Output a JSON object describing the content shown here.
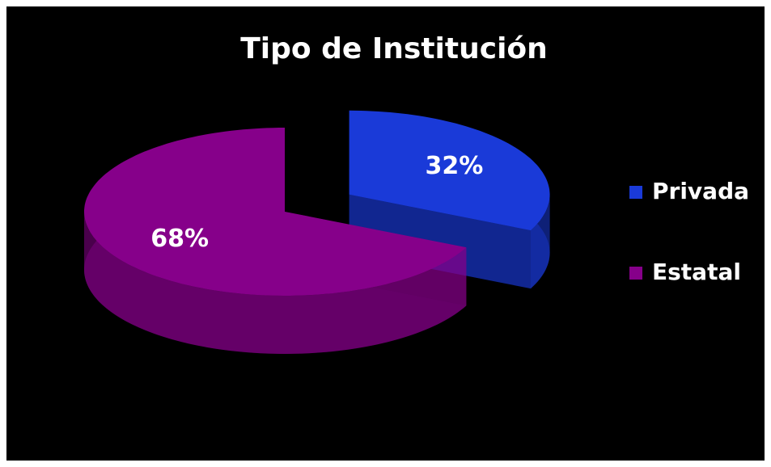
{
  "chart_data": {
    "type": "pie",
    "title": "Tipo de Institución",
    "categories": [
      "Privada",
      "Estatal"
    ],
    "values": [
      32,
      68
    ],
    "value_labels": [
      "32%",
      "68%"
    ],
    "colors": [
      "#1a3ad8",
      "#86008a"
    ],
    "legend": "right"
  }
}
